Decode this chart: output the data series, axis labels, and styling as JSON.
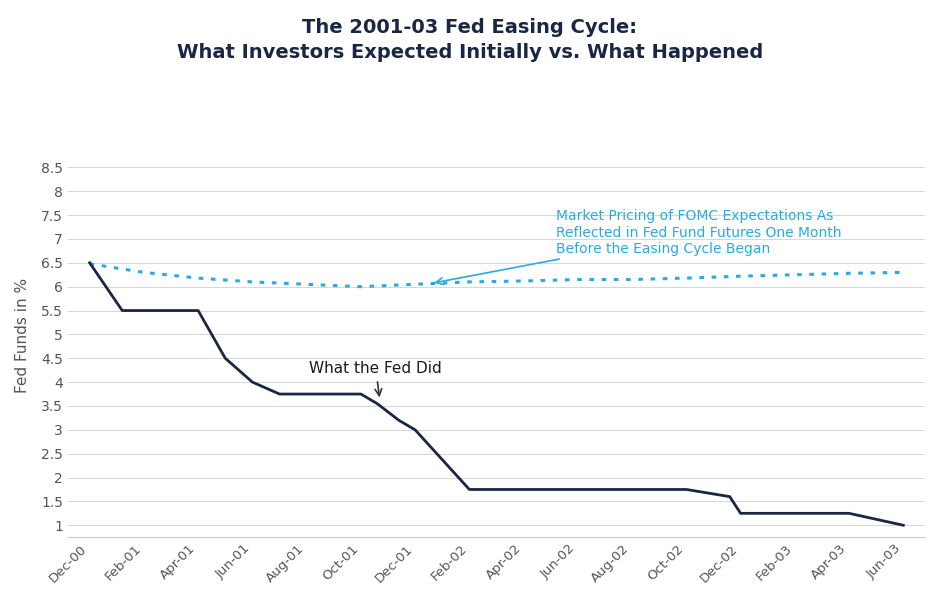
{
  "title_line1": "The 2001-03 Fed Easing Cycle:",
  "title_line2": "What Investors Expected Initially vs. What Happened",
  "ylabel": "Fed Funds in %",
  "title_color": "#1a2744",
  "background_color": "#ffffff",
  "ylim": [
    0.75,
    9.2
  ],
  "yticks": [
    1.0,
    1.5,
    2.0,
    2.5,
    3.0,
    3.5,
    4.0,
    4.5,
    5.0,
    5.5,
    6.0,
    6.5,
    7.0,
    7.5,
    8.0,
    8.5
  ],
  "xtick_labels": [
    "Dec-00",
    "Feb-01",
    "Apr-01",
    "Jun-01",
    "Aug-01",
    "Oct-01",
    "Dec-01",
    "Feb-02",
    "Apr-02",
    "Jun-02",
    "Aug-02",
    "Oct-02",
    "Dec-02",
    "Feb-03",
    "Apr-03",
    "Jun-03"
  ],
  "actual_x": [
    0,
    0.6,
    1,
    1.5,
    2,
    2.5,
    3,
    3.5,
    4,
    4.5,
    5,
    5.3,
    5.7,
    6,
    6.8,
    7,
    8,
    9,
    10,
    11,
    11.8,
    12,
    13,
    14,
    14.8,
    15
  ],
  "actual_y": [
    6.5,
    5.5,
    5.5,
    5.5,
    5.5,
    4.5,
    4.0,
    3.75,
    3.75,
    3.75,
    3.75,
    3.55,
    3.2,
    3.0,
    2.0,
    1.75,
    1.75,
    1.75,
    1.75,
    1.75,
    1.6,
    1.25,
    1.25,
    1.25,
    1.05,
    1.0
  ],
  "actual_color": "#1a2744",
  "expected_x": [
    0,
    1,
    2,
    3,
    4,
    5,
    6,
    7,
    8,
    9,
    10,
    11,
    12,
    13,
    14,
    15
  ],
  "expected_y": [
    6.48,
    6.3,
    6.18,
    6.1,
    6.05,
    6.0,
    6.05,
    6.1,
    6.12,
    6.15,
    6.15,
    6.18,
    6.22,
    6.25,
    6.28,
    6.3
  ],
  "expected_color": "#29abe2",
  "annotation_fed_text": "What the Fed Did",
  "annotation_exp_text": "Market Pricing of FOMC Expectations As\nReflected in Fed Fund Futures One Month\nBefore the Easing Cycle Began"
}
